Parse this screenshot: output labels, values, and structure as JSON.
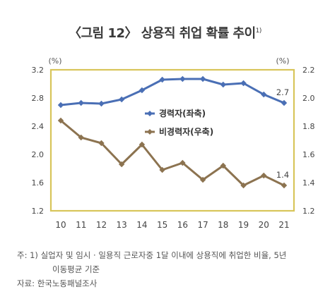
{
  "title": "〈그림 12〉 상용직 취업 확률 추이",
  "title_footnote": "1)",
  "chart_data": {
    "type": "line",
    "x": [
      "10",
      "11",
      "12",
      "13",
      "14",
      "15",
      "16",
      "17",
      "18",
      "19",
      "20",
      "21"
    ],
    "y_left": {
      "unit": "(%)",
      "ylim": [
        1.2,
        3.2
      ],
      "ticks": [
        "1.2",
        "1.6",
        "2.0",
        "2.4",
        "2.8",
        "3.2"
      ]
    },
    "y_right": {
      "unit": "(%)",
      "ylim": [
        1.2,
        2.2
      ],
      "ticks": [
        "1.2",
        "1.4",
        "1.6",
        "1.8",
        "2.0",
        "2.2"
      ]
    },
    "series": [
      {
        "name": "경력자(좌축)",
        "axis": "left",
        "color": "#4a6fb5",
        "marker": "diamond",
        "values": [
          2.7,
          2.73,
          2.72,
          2.78,
          2.91,
          3.06,
          3.07,
          3.07,
          2.99,
          3.01,
          2.85,
          2.73
        ],
        "end_label": "2.7"
      },
      {
        "name": "비경력자(우축)",
        "axis": "right",
        "color": "#8c7350",
        "marker": "diamond",
        "values": [
          1.84,
          1.72,
          1.68,
          1.53,
          1.67,
          1.49,
          1.54,
          1.42,
          1.52,
          1.38,
          1.45,
          1.38
        ],
        "end_label": "1.4"
      }
    ],
    "grid": false,
    "legend_position": "center-right"
  },
  "notes": {
    "line1": "주: 1) 실업자 및 임시 · 일용직 근로자중 1달 이내에 상용직에 취업한 비율, 5년",
    "line2": "이동평균 기준",
    "source": "자료: 한국노동패널조사"
  }
}
